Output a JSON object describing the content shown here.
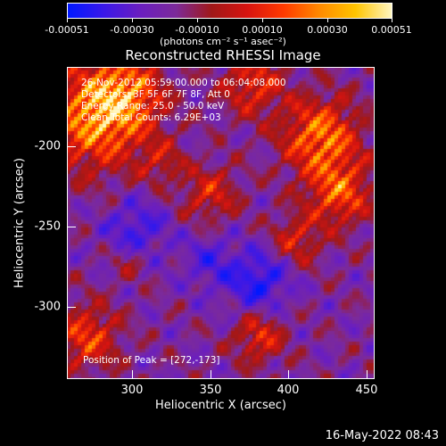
{
  "colorbar": {
    "ticks": [
      "-0.00051",
      "-0.00030",
      "-0.00010",
      "0.00010",
      "0.00030",
      "0.00051"
    ],
    "units": "(photons cm⁻² s⁻¹ asec⁻²)",
    "colors": [
      "#0018ff",
      "#3a18e8",
      "#6a1ec0",
      "#7c2a9a",
      "#a01818",
      "#d81410",
      "#ff3a00",
      "#ff8a00",
      "#ffc400",
      "#fff6c0"
    ]
  },
  "title": "Reconstructed RHESSI Image",
  "info": {
    "line1": "26-Nov-2012 05:59:00.000 to 06:04:08.000",
    "line2": "Detectors: 3F 5F 6F 7F 8F, Att 0",
    "line3": "Energy Range: 25.0 - 50.0 keV",
    "line4": "Clean     Total Counts: 6.29E+03"
  },
  "peak_text": "Position of Peak = [272,-173]",
  "axes": {
    "xlabel": "Heliocentric X (arcsec)",
    "ylabel": "Heliocentric Y (arcsec)",
    "xticks": [
      "300",
      "350",
      "400",
      "450"
    ],
    "yticks": [
      "-200",
      "-250",
      "-300"
    ]
  },
  "timestamp": "16-May-2022 08:43"
}
